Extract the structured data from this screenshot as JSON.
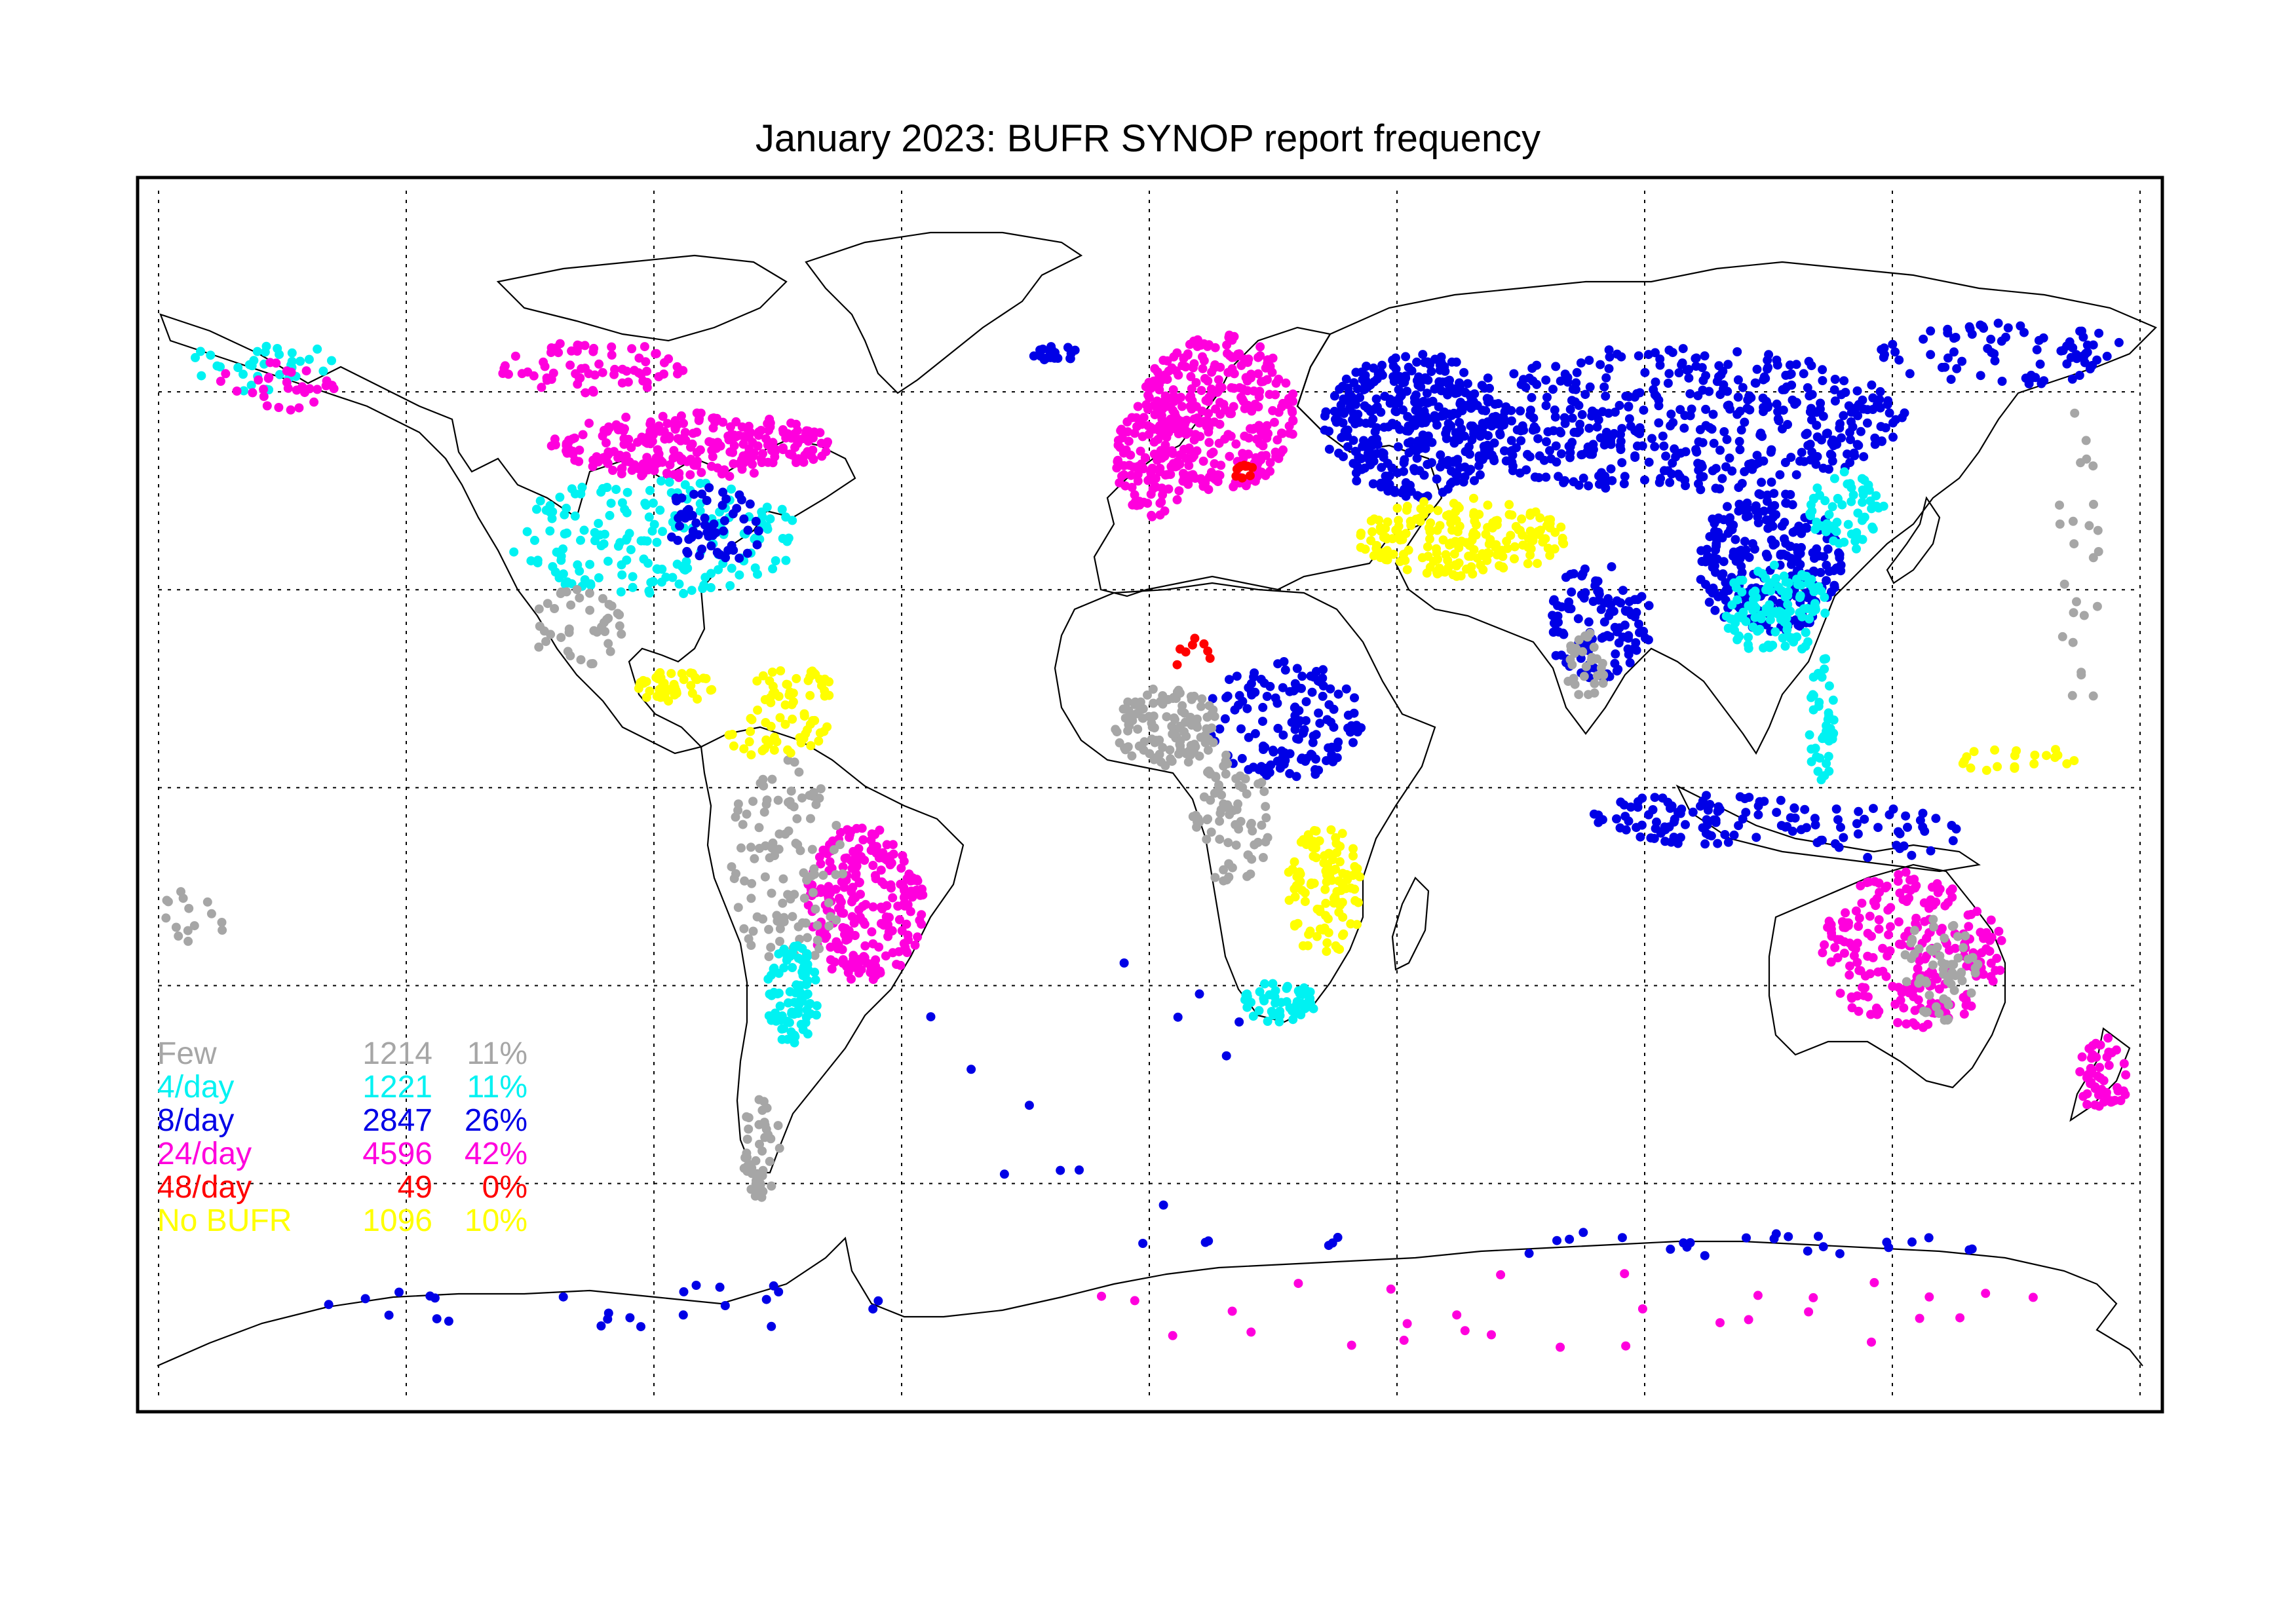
{
  "title": "January 2023: BUFR SYNOP report frequency",
  "colors": {
    "few": "#a6a6a6",
    "four_day": "#00f2f2",
    "eight_day": "#0000e6",
    "twentyfour_day": "#ff00dd",
    "fortyeight_day": "#ff0000",
    "no_bufr": "#ffff00",
    "coast": "#000000",
    "grid": "#000000",
    "frame": "#000000"
  },
  "legend": [
    {
      "label": "Few",
      "count": "1214",
      "pct": "11%",
      "color": "#a6a6a6"
    },
    {
      "label": " 4/day",
      "count": "1221",
      "pct": "11%",
      "color": "#00f2f2"
    },
    {
      "label": " 8/day",
      "count": "2847",
      "pct": "26%",
      "color": "#0000e6"
    },
    {
      "label": "24/day",
      "count": "4596",
      "pct": "42%",
      "color": "#ff00dd"
    },
    {
      "label": "48/day",
      "count": "49",
      "pct": "0%",
      "color": "#ff0000"
    },
    {
      "label": "No BUFR",
      "count": "1096",
      "pct": "10%",
      "color": "#ffff00"
    }
  ],
  "projection": {
    "lon_range": [
      -180,
      180
    ],
    "lat_range": [
      -90,
      90
    ],
    "grid_lon_step": 45,
    "grid_lat_step": 30
  }
}
